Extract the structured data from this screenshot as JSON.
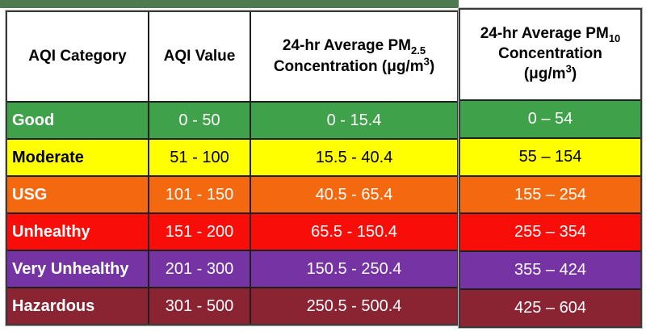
{
  "page": {
    "top_bar_color": "#4e7a50",
    "border_color": "#1f1f1f"
  },
  "table": {
    "headers": {
      "category": "AQI Category",
      "value": "AQI Value",
      "pm25": {
        "line1_prefix": "24-hr Average PM",
        "line1_sub": "2.5",
        "line2_prefix": "Concentration (",
        "unit": "μg/m",
        "unit_sup": "3",
        "suffix": ")"
      },
      "pm10": {
        "line1_prefix": "24-hr Average PM",
        "line1_sub": "10",
        "line2": "Concentration",
        "line3_prefix": "(",
        "unit": "μg/m",
        "unit_sup": "3",
        "suffix": ")"
      }
    },
    "rows": [
      {
        "category": "Good",
        "aqi": "0 - 50",
        "pm25": "0 - 15.4",
        "pm10": "0 – 54",
        "bg": "#3FA24A",
        "text": "#ffffff"
      },
      {
        "category": "Moderate",
        "aqi": "51 - 100",
        "pm25": "15.5 - 40.4",
        "pm10": "55 – 154",
        "bg": "#FFFF00",
        "text": "#000000"
      },
      {
        "category": "USG",
        "aqi": "101 - 150",
        "pm25": "40.5 - 65.4",
        "pm10": "155 – 254",
        "bg": "#F4690F",
        "text": "#ffffff"
      },
      {
        "category": "Unhealthy",
        "aqi": "151 - 200",
        "pm25": "65.5 - 150.4",
        "pm10": "255 – 354",
        "bg": "#F80D09",
        "text": "#ffffff"
      },
      {
        "category": "Very Unhealthy",
        "aqi": "201 - 300",
        "pm25": "150.5 - 250.4",
        "pm10": "355 – 424",
        "bg": "#7533A4",
        "text": "#ffffff"
      },
      {
        "category": "Hazardous",
        "aqi": "301 - 500",
        "pm25": "250.5 - 500.4",
        "pm10": "425 – 604",
        "bg": "#8A2433",
        "text": "#ffffff"
      }
    ]
  }
}
